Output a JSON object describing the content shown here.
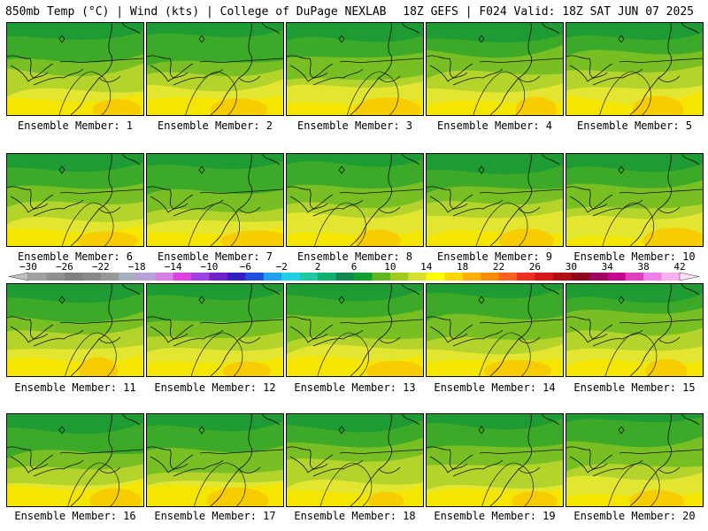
{
  "header": {
    "left": "850mb Temp (°C) | Wind (kts) | College of DuPage NEXLAB",
    "right": "18Z GEFS | F024 Valid: 18Z SAT JUN 07 2025"
  },
  "panels": [
    {
      "member": "Ensemble Member: 1"
    },
    {
      "member": "Ensemble Member: 2"
    },
    {
      "member": "Ensemble Member: 3"
    },
    {
      "member": "Ensemble Member: 4"
    },
    {
      "member": "Ensemble Member: 5"
    },
    {
      "member": "Ensemble Member: 6"
    },
    {
      "member": "Ensemble Member: 7"
    },
    {
      "member": "Ensemble Member: 8"
    },
    {
      "member": "Ensemble Member: 9"
    },
    {
      "member": "Ensemble Member: 10"
    },
    {
      "member": "Ensemble Member: 11"
    },
    {
      "member": "Ensemble Member: 12"
    },
    {
      "member": "Ensemble Member: 13"
    },
    {
      "member": "Ensemble Member: 14"
    },
    {
      "member": "Ensemble Member: 15"
    },
    {
      "member": "Ensemble Member: 16"
    },
    {
      "member": "Ensemble Member: 17"
    },
    {
      "member": "Ensemble Member: 18"
    },
    {
      "member": "Ensemble Member: 19"
    },
    {
      "member": "Ensemble Member: 20"
    }
  ],
  "colorbar": {
    "labels": [
      "−30",
      "−26",
      "−22",
      "−18",
      "−14",
      "−10",
      "−6",
      "−2",
      "2",
      "6",
      "10",
      "14",
      "18",
      "22",
      "26",
      "30",
      "34",
      "38",
      "42"
    ],
    "colors": [
      "#a0a0a0",
      "#909090",
      "#808080",
      "#888888",
      "#989898",
      "#a8b0c0",
      "#b8a0d8",
      "#d880e8",
      "#e040e0",
      "#a040e0",
      "#7020c8",
      "#3020c0",
      "#2050e0",
      "#20a0f0",
      "#20d0e8",
      "#20c8a0",
      "#10b070",
      "#108850",
      "#10a030",
      "#60b820",
      "#a0cc20",
      "#d8e030",
      "#ffff00",
      "#ffd700",
      "#ffb000",
      "#ff8c00",
      "#ff6020",
      "#f03020",
      "#d81818",
      "#b01010",
      "#900818",
      "#a00060",
      "#c80090",
      "#e040c0",
      "#f080e8",
      "#f8b0f0"
    ],
    "left_arrow_color": "#c0c0c0",
    "right_arrow_color": "#ffe0f8"
  }
}
